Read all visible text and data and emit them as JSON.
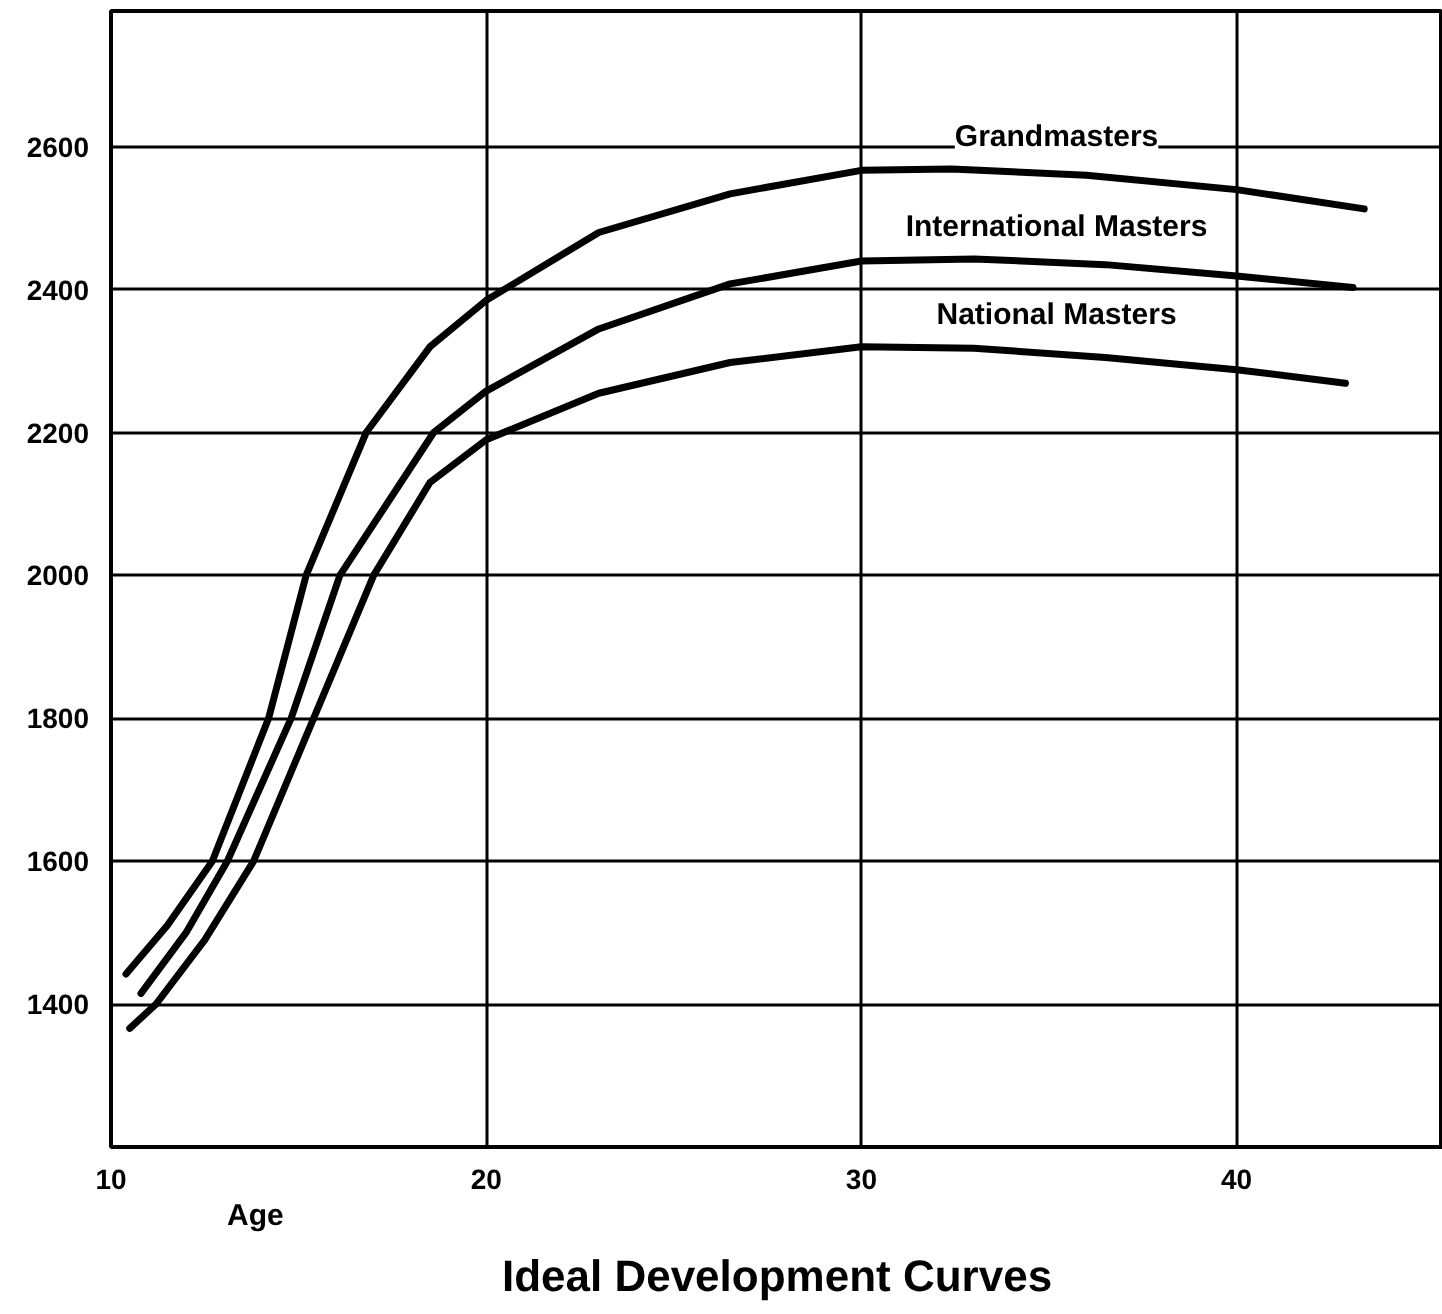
{
  "chart_data": {
    "type": "line",
    "title": "Ideal Development Curves",
    "xlabel": "Age",
    "xlim": [
      10,
      45.5
    ],
    "ylim": [
      1200,
      2790
    ],
    "xticks": [
      10,
      20,
      30,
      40
    ],
    "yticks": [
      1400,
      1600,
      1800,
      2000,
      2200,
      2400,
      2600
    ],
    "grid": true,
    "legend": false,
    "marker": "none",
    "line_style": "solid",
    "series": [
      {
        "name": "Grandmasters",
        "color": "#000000",
        "x": [
          10.4,
          11.5,
          12.7,
          14.2,
          15.2,
          16.8,
          18.5,
          20,
          23,
          26.5,
          30,
          32.4,
          36,
          40,
          43.4
        ],
        "values": [
          1442,
          1510,
          1600,
          1800,
          2000,
          2200,
          2320,
          2385,
          2480,
          2534,
          2567,
          2569,
          2560,
          2540,
          2513
        ]
      },
      {
        "name": "International Masters",
        "color": "#000000",
        "x": [
          10.8,
          12,
          13.1,
          14.8,
          16.1,
          18.6,
          20,
          23,
          26.5,
          30,
          33,
          36.5,
          40,
          43.1
        ],
        "values": [
          1415,
          1500,
          1600,
          1800,
          2000,
          2200,
          2258,
          2345,
          2408,
          2440,
          2443,
          2435,
          2419,
          2403
        ]
      },
      {
        "name": "National Masters",
        "color": "#000000",
        "x": [
          10.5,
          11.2,
          12.5,
          13.8,
          15.4,
          17,
          18.5,
          20,
          23,
          26.5,
          30,
          33,
          36.5,
          40,
          42.9
        ],
        "values": [
          1366,
          1400,
          1490,
          1600,
          1800,
          2000,
          2130,
          2190,
          2255,
          2298,
          2320,
          2318,
          2305,
          2288,
          2269
        ]
      }
    ]
  }
}
